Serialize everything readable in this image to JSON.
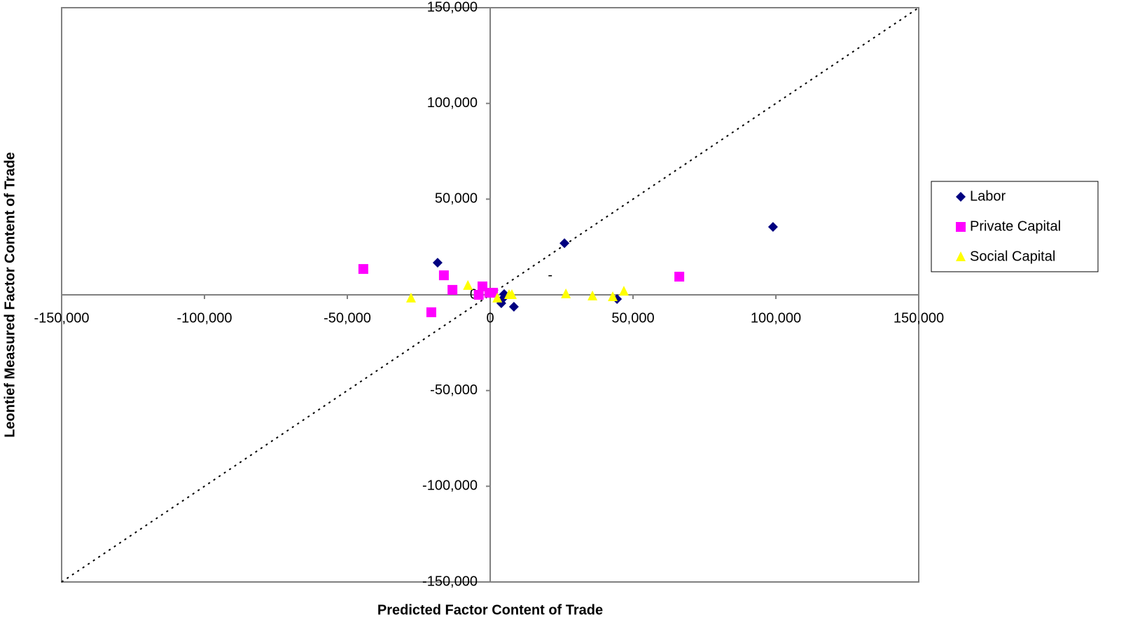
{
  "chart_data": {
    "type": "scatter",
    "x_label": "Predicted Factor Content of Trade",
    "y_label": "Leontief Measured Factor Content of Trade",
    "xlim": [
      -150000,
      150000
    ],
    "ylim": [
      -150000,
      150000
    ],
    "xticks": [
      {
        "value": -150000,
        "label": "-150,000"
      },
      {
        "value": -100000,
        "label": "-100,000"
      },
      {
        "value": -50000,
        "label": "-50,000"
      },
      0,
      {
        "value": 50000,
        "label": "50,000"
      },
      {
        "value": 100000,
        "label": "100,000"
      },
      {
        "value": 150000,
        "label": "150,000"
      }
    ],
    "yticks": [
      {
        "value": -150000,
        "label": "-150,000"
      },
      {
        "value": -100000,
        "label": "-100,000"
      },
      {
        "value": -50000,
        "label": "-50,000"
      },
      0,
      {
        "value": 50000,
        "label": "50,000"
      },
      {
        "value": 100000,
        "label": "100,000"
      },
      {
        "value": 150000,
        "label": "150,000"
      }
    ],
    "grid": false,
    "diagonal": true,
    "legend": "right",
    "annotations": [
      {
        "text": "-",
        "x": 21000,
        "y": 10000
      }
    ],
    "series": [
      {
        "name": "Labor",
        "color": "#000080",
        "marker": "diamond",
        "x": [
          -18400,
          26000,
          99000,
          44400,
          4900,
          3900,
          8300,
          4400
        ],
        "values": [
          16800,
          27000,
          35500,
          -2200,
          400,
          -4400,
          -6200,
          -2000
        ]
      },
      {
        "name": "Private Capital",
        "color": "#ff00ff",
        "marker": "square",
        "x": [
          -44400,
          -16200,
          -13200,
          -20600,
          -2700,
          -300,
          1000,
          66200,
          -4000
        ],
        "values": [
          13500,
          10200,
          2600,
          -9100,
          4400,
          1100,
          1100,
          9500,
          0
        ]
      },
      {
        "name": "Social Capital",
        "color": "#ffff00",
        "marker": "triangle",
        "x": [
          -27700,
          -7800,
          2500,
          7600,
          6600,
          26500,
          35800,
          42900,
          46800
        ],
        "values": [
          -1800,
          4800,
          -1800,
          0,
          0,
          400,
          -700,
          -1100,
          1800
        ]
      }
    ]
  }
}
